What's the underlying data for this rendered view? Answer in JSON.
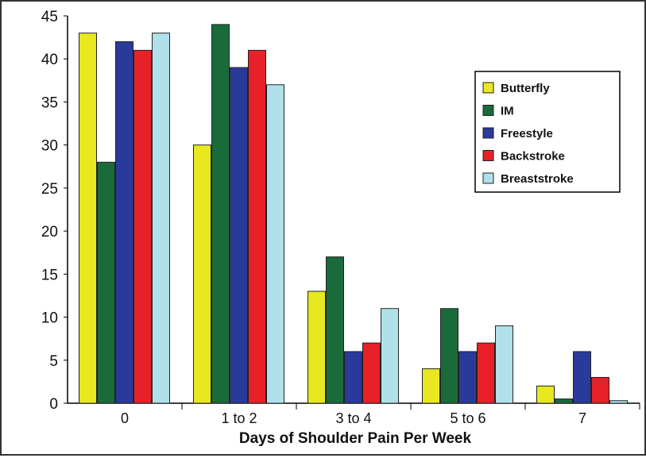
{
  "chart_data": {
    "type": "bar",
    "title": "",
    "xlabel": "Days of Shoulder Pain Per Week",
    "ylabel": "",
    "ylim": [
      0,
      45
    ],
    "yticks": [
      0,
      5,
      10,
      15,
      20,
      25,
      30,
      35,
      40,
      45
    ],
    "categories": [
      "0",
      "1 to 2",
      "3 to 4",
      "5 to 6",
      "7"
    ],
    "legend_position": "right",
    "series": [
      {
        "name": "Butterfly",
        "color": "#e8e820",
        "values": [
          43,
          30,
          13,
          4,
          2
        ]
      },
      {
        "name": "IM",
        "color": "#1a6b3a",
        "values": [
          28,
          44,
          17,
          11,
          0.5
        ]
      },
      {
        "name": "Freestyle",
        "color": "#2a3a9a",
        "values": [
          42,
          39,
          6,
          6,
          6
        ]
      },
      {
        "name": "Backstroke",
        "color": "#e82028",
        "values": [
          41,
          41,
          7,
          7,
          3
        ]
      },
      {
        "name": "Breaststroke",
        "color": "#b0e0ea",
        "values": [
          43,
          37,
          11,
          9,
          0.3
        ]
      }
    ]
  }
}
